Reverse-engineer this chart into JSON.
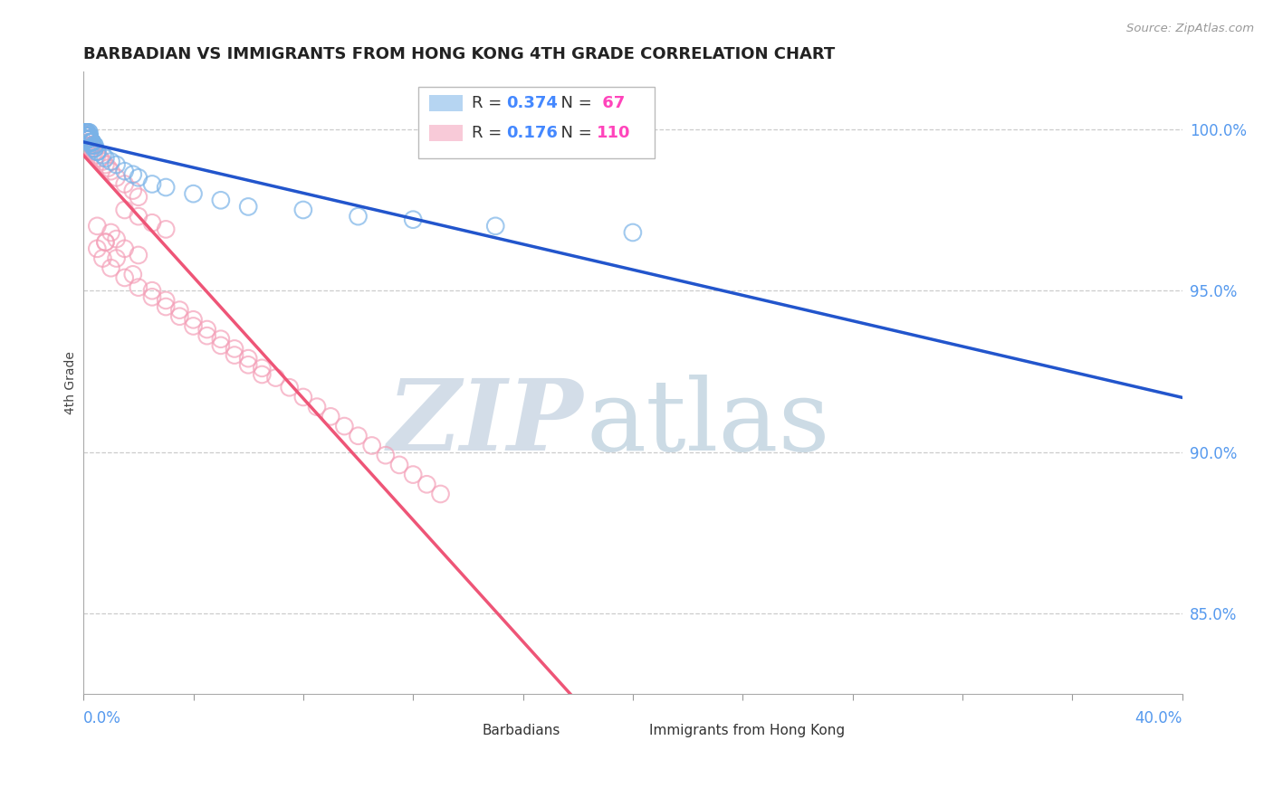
{
  "title": "BARBADIAN VS IMMIGRANTS FROM HONG KONG 4TH GRADE CORRELATION CHART",
  "source_text": "Source: ZipAtlas.com",
  "ylabel": "4th Grade",
  "ytick_labels": [
    "100.0%",
    "95.0%",
    "90.0%",
    "85.0%"
  ],
  "ytick_values": [
    1.0,
    0.95,
    0.9,
    0.85
  ],
  "xlim": [
    0.0,
    0.4
  ],
  "ylim": [
    0.825,
    1.018
  ],
  "blue_color": "#7ab3e8",
  "pink_color": "#f4a0b8",
  "trend_blue": "#2255cc",
  "trend_pink": "#ee5577",
  "legend_r_color": "#4488ff",
  "legend_n_color": "#ff44bb",
  "watermark_zip_color": "#c8d8e8",
  "watermark_atlas_color": "#a8c4d8",
  "tick_label_color": "#5599ee",
  "blue_x": [
    0.001,
    0.002,
    0.001,
    0.003,
    0.002,
    0.001,
    0.002,
    0.003,
    0.001,
    0.002,
    0.003,
    0.001,
    0.002,
    0.001,
    0.003,
    0.002,
    0.001,
    0.002,
    0.003,
    0.001,
    0.002,
    0.003,
    0.001,
    0.002,
    0.004,
    0.002,
    0.003,
    0.001,
    0.002,
    0.001,
    0.003,
    0.002,
    0.001,
    0.002,
    0.001,
    0.003,
    0.004,
    0.002,
    0.001,
    0.003,
    0.002,
    0.004,
    0.001,
    0.003,
    0.002,
    0.004,
    0.005,
    0.003,
    0.002,
    0.005,
    0.007,
    0.008,
    0.01,
    0.012,
    0.015,
    0.018,
    0.02,
    0.025,
    0.03,
    0.04,
    0.05,
    0.06,
    0.08,
    0.1,
    0.12,
    0.15,
    0.2
  ],
  "blue_y": [
    0.998,
    0.997,
    0.999,
    0.996,
    0.998,
    0.997,
    0.999,
    0.996,
    0.998,
    0.997,
    0.996,
    0.999,
    0.997,
    0.998,
    0.996,
    0.999,
    0.997,
    0.998,
    0.996,
    0.999,
    0.997,
    0.996,
    0.998,
    0.997,
    0.995,
    0.998,
    0.996,
    0.999,
    0.997,
    0.998,
    0.996,
    0.998,
    0.999,
    0.997,
    0.999,
    0.996,
    0.995,
    0.998,
    0.999,
    0.996,
    0.998,
    0.994,
    0.999,
    0.996,
    0.997,
    0.994,
    0.993,
    0.995,
    0.996,
    0.993,
    0.992,
    0.991,
    0.99,
    0.989,
    0.987,
    0.986,
    0.985,
    0.983,
    0.982,
    0.98,
    0.978,
    0.976,
    0.975,
    0.973,
    0.972,
    0.97,
    0.968
  ],
  "pink_x": [
    0.001,
    0.002,
    0.001,
    0.003,
    0.001,
    0.002,
    0.001,
    0.003,
    0.002,
    0.001,
    0.002,
    0.003,
    0.001,
    0.002,
    0.001,
    0.003,
    0.002,
    0.001,
    0.002,
    0.001,
    0.003,
    0.001,
    0.002,
    0.001,
    0.002,
    0.001,
    0.003,
    0.002,
    0.001,
    0.002,
    0.003,
    0.001,
    0.002,
    0.001,
    0.003,
    0.002,
    0.001,
    0.002,
    0.001,
    0.003,
    0.002,
    0.001,
    0.002,
    0.001,
    0.003,
    0.002,
    0.001,
    0.002,
    0.003,
    0.001,
    0.004,
    0.005,
    0.006,
    0.007,
    0.008,
    0.009,
    0.01,
    0.012,
    0.015,
    0.018,
    0.02,
    0.015,
    0.02,
    0.025,
    0.03,
    0.01,
    0.012,
    0.008,
    0.015,
    0.02,
    0.005,
    0.007,
    0.01,
    0.015,
    0.02,
    0.025,
    0.03,
    0.035,
    0.04,
    0.045,
    0.05,
    0.055,
    0.06,
    0.065,
    0.005,
    0.008,
    0.012,
    0.018,
    0.025,
    0.03,
    0.035,
    0.04,
    0.045,
    0.05,
    0.055,
    0.06,
    0.065,
    0.07,
    0.075,
    0.08,
    0.085,
    0.09,
    0.095,
    0.1,
    0.105,
    0.11,
    0.115,
    0.12,
    0.125,
    0.13
  ],
  "pink_y": [
    0.998,
    0.997,
    0.999,
    0.996,
    0.999,
    0.997,
    0.998,
    0.995,
    0.997,
    0.999,
    0.997,
    0.995,
    0.999,
    0.997,
    0.998,
    0.995,
    0.997,
    0.999,
    0.997,
    0.998,
    0.995,
    0.999,
    0.997,
    0.998,
    0.997,
    0.999,
    0.995,
    0.997,
    0.999,
    0.997,
    0.995,
    0.999,
    0.997,
    0.998,
    0.995,
    0.997,
    0.999,
    0.997,
    0.998,
    0.995,
    0.997,
    0.999,
    0.997,
    0.998,
    0.994,
    0.996,
    0.999,
    0.997,
    0.994,
    0.998,
    0.993,
    0.992,
    0.991,
    0.99,
    0.989,
    0.988,
    0.987,
    0.985,
    0.983,
    0.981,
    0.979,
    0.975,
    0.973,
    0.971,
    0.969,
    0.968,
    0.966,
    0.965,
    0.963,
    0.961,
    0.963,
    0.96,
    0.957,
    0.954,
    0.951,
    0.948,
    0.945,
    0.942,
    0.939,
    0.936,
    0.933,
    0.93,
    0.927,
    0.924,
    0.97,
    0.965,
    0.96,
    0.955,
    0.95,
    0.947,
    0.944,
    0.941,
    0.938,
    0.935,
    0.932,
    0.929,
    0.926,
    0.923,
    0.92,
    0.917,
    0.914,
    0.911,
    0.908,
    0.905,
    0.902,
    0.899,
    0.896,
    0.893,
    0.89,
    0.887
  ]
}
